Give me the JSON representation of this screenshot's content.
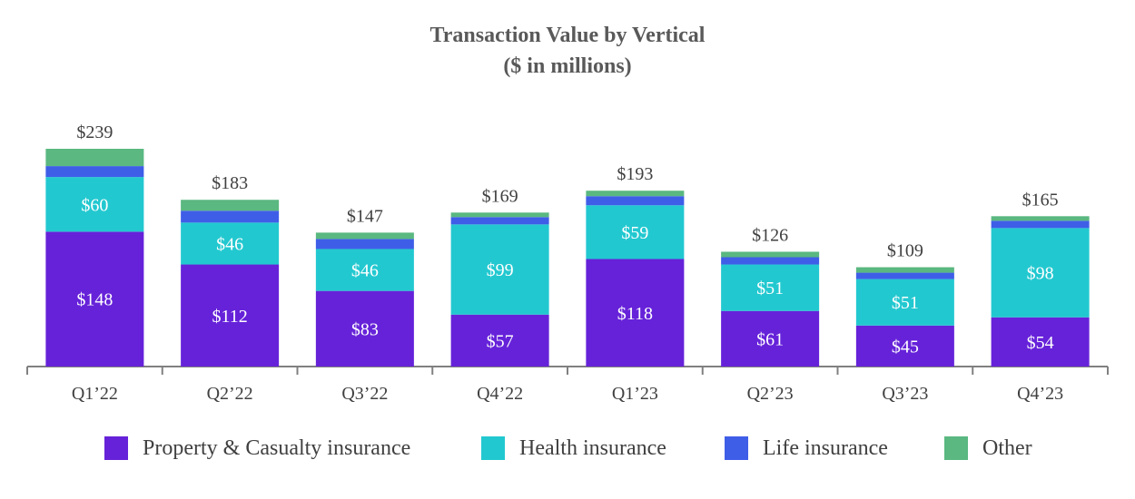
{
  "title_line1": "Transaction Value by Vertical",
  "title_line2": "($ in millions)",
  "colors": {
    "Property & Casualty insurance": "#6622d9",
    "Health insurance": "#22c8d0",
    "Life insurance": "#3f5ee8",
    "Other": "#5ab880",
    "axis": "#808080",
    "total_label": "#404040",
    "segment_label": "#ffffff"
  },
  "chart_data": {
    "type": "bar",
    "stacked": true,
    "title": "Transaction Value by Vertical ($ in millions)",
    "categories": [
      "Q1’22",
      "Q2’22",
      "Q3’22",
      "Q4’22",
      "Q1’23",
      "Q2’23",
      "Q3’23",
      "Q4’23"
    ],
    "series": [
      {
        "name": "Property & Casualty insurance",
        "values": [
          148,
          112,
          83,
          57,
          118,
          61,
          45,
          54
        ]
      },
      {
        "name": "Health insurance",
        "values": [
          60,
          46,
          46,
          99,
          59,
          51,
          51,
          98
        ]
      },
      {
        "name": "Life insurance",
        "values": [
          12,
          13,
          11,
          8,
          10,
          8,
          7,
          8
        ]
      },
      {
        "name": "Other",
        "values": [
          19,
          12,
          7,
          5,
          6,
          6,
          6,
          5
        ]
      }
    ],
    "segment_labels": {
      "Property & Casualty insurance": [
        "$148",
        "$112",
        "$83",
        "$57",
        "$118",
        "$61",
        "$45",
        "$54"
      ],
      "Health insurance": [
        "$60",
        "$46",
        "$46",
        "$99",
        "$59",
        "$51",
        "$51",
        "$98"
      ]
    },
    "totals": [
      239,
      183,
      147,
      169,
      193,
      126,
      109,
      165
    ],
    "total_labels": [
      "$239",
      "$183",
      "$147",
      "$169",
      "$193",
      "$126",
      "$109",
      "$165"
    ],
    "xlabel": "",
    "ylabel": "",
    "ylim": [
      0,
      250
    ],
    "grid": false,
    "legend_position": "bottom"
  },
  "legend": [
    {
      "label": "Property & Casualty insurance",
      "color": "#6622d9"
    },
    {
      "label": "Health insurance",
      "color": "#22c8d0"
    },
    {
      "label": "Life insurance",
      "color": "#3f5ee8"
    },
    {
      "label": "Other",
      "color": "#5ab880"
    }
  ]
}
